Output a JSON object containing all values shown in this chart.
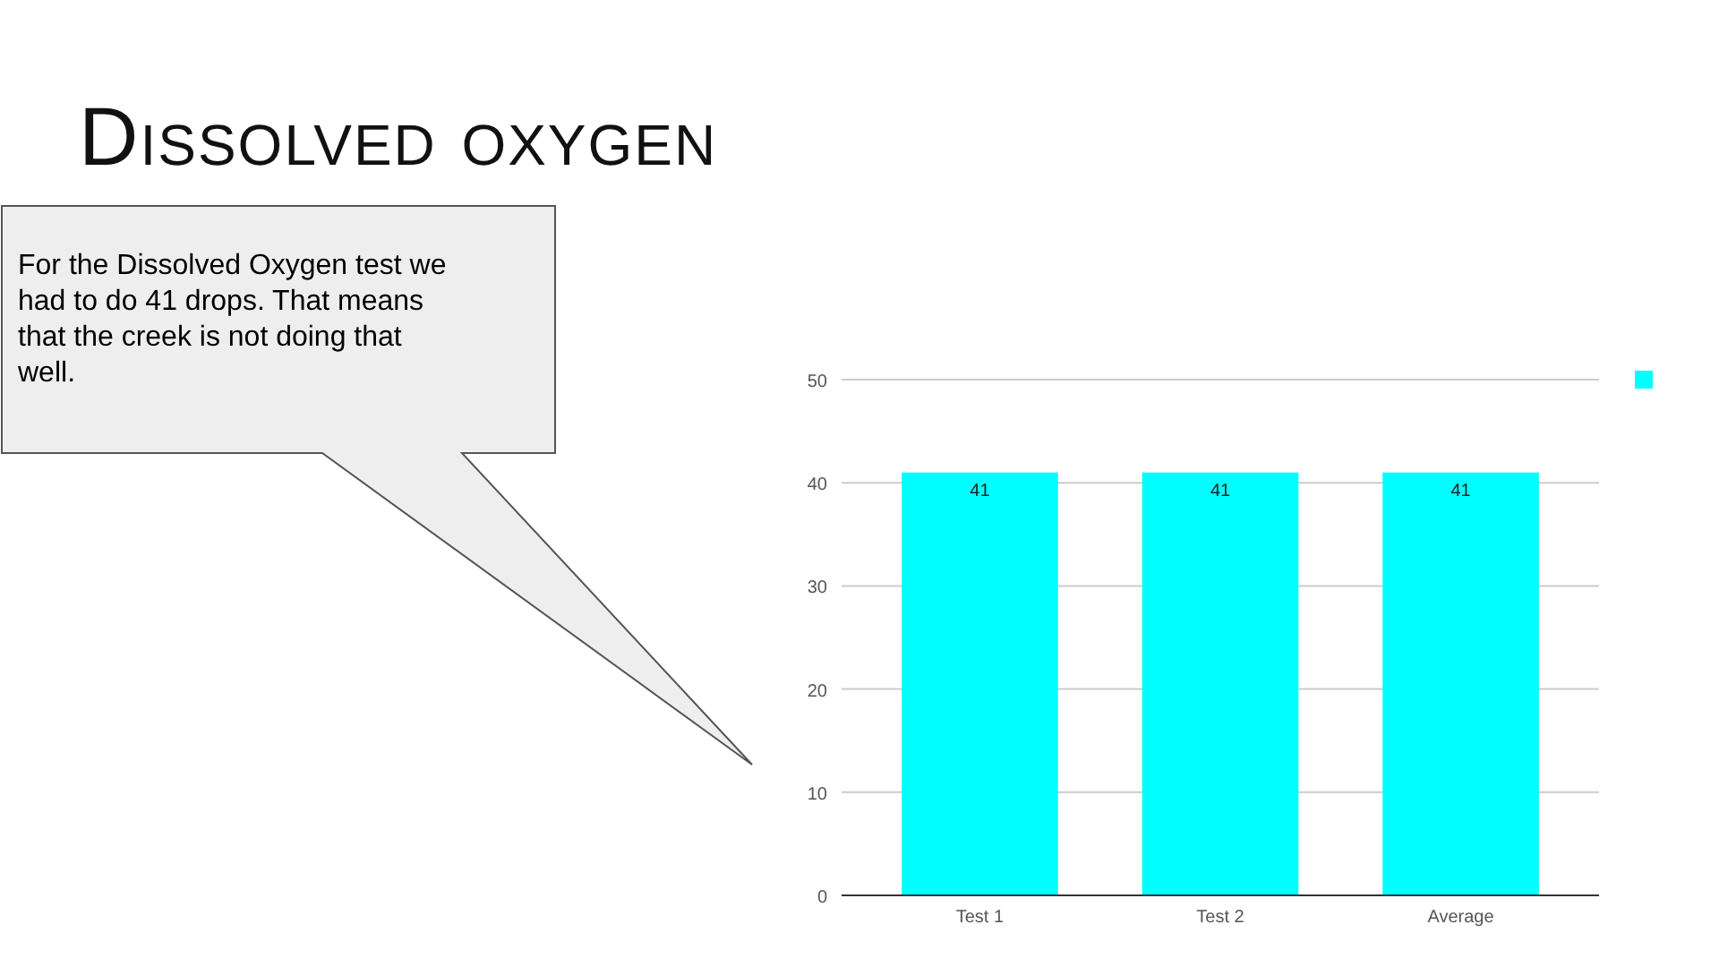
{
  "chart_data": {
    "type": "bar",
    "title": "Dissolved oxygen",
    "annotations": [
      "For the Dissolved Oxygen test we had to do 41 drops. That means that the creek is not doing that well."
    ],
    "categories": [
      "Test 1",
      "Test 2",
      "Average"
    ],
    "series": [
      {
        "color": "#00ffff",
        "values": [
          41,
          41,
          41
        ]
      }
    ],
    "ylim": [
      0,
      50
    ],
    "yticks": [
      0,
      10,
      20,
      30,
      40,
      50
    ],
    "grid": "y",
    "data_labels": true
  }
}
